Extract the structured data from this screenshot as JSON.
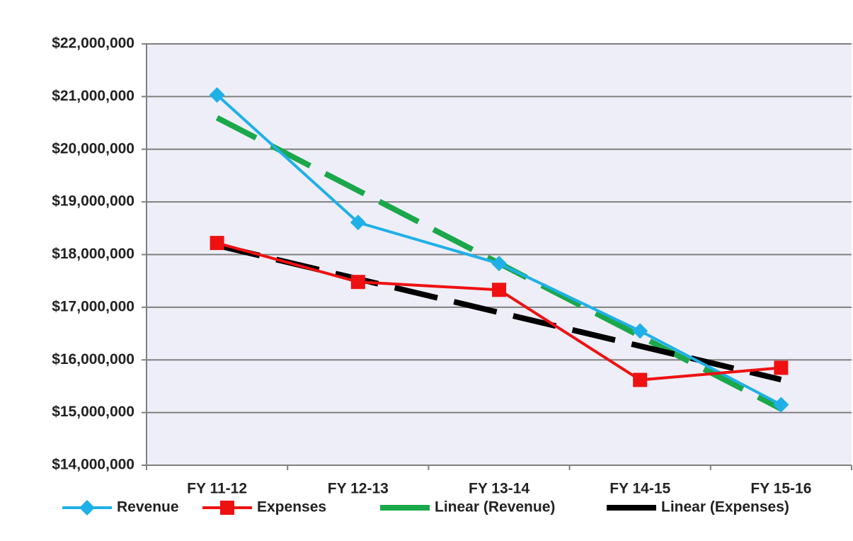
{
  "chart_data": {
    "type": "line",
    "categories": [
      "FY 11-12",
      "FY 12-13",
      "FY 13-14",
      "FY 14-15",
      "FY 15-16"
    ],
    "series": [
      {
        "name": "Revenue",
        "color": "#1fb0e8",
        "marker": "diamond",
        "values": [
          21030000,
          18610000,
          17830000,
          16550000,
          15150000
        ]
      },
      {
        "name": "Expenses",
        "color": "#ee1111",
        "marker": "square",
        "values": [
          18220000,
          17480000,
          17330000,
          15620000,
          15850000
        ]
      },
      {
        "name": "Linear (Revenue)",
        "color": "#1aa84a",
        "dashed": true,
        "values": [
          20598000,
          19216000,
          17834000,
          16452000,
          15070000
        ]
      },
      {
        "name": "Linear (Expenses)",
        "color": "#000000",
        "dashed": true,
        "values": [
          18174000,
          17537000,
          16900000,
          16263000,
          15626000
        ]
      }
    ],
    "ylim": [
      14000000,
      22000000
    ],
    "yticks": [
      {
        "value": 14000000,
        "label": "$14,000,000"
      },
      {
        "value": 15000000,
        "label": "$15,000,000"
      },
      {
        "value": 16000000,
        "label": "$16,000,000"
      },
      {
        "value": 17000000,
        "label": "$17,000,000"
      },
      {
        "value": 18000000,
        "label": "$18,000,000"
      },
      {
        "value": 19000000,
        "label": "$19,000,000"
      },
      {
        "value": 20000000,
        "label": "$20,000,000"
      },
      {
        "value": 21000000,
        "label": "$21,000,000"
      },
      {
        "value": 22000000,
        "label": "$22,000,000"
      }
    ],
    "grid": true,
    "legend": "bottom"
  }
}
